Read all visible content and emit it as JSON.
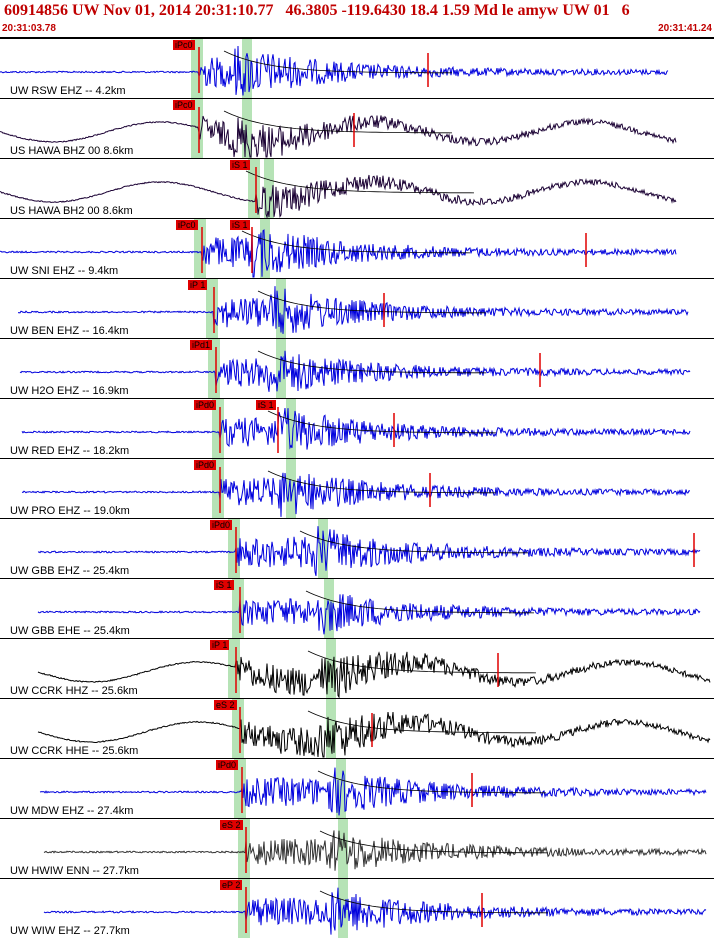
{
  "header": {
    "title": "60914856 UW Nov 01, 2014 20:31:10.77   46.3805 -119.6430 18.4 1.59 Md le amyw UW 01   6",
    "start_time": "20:31:03.78",
    "end_time": "20:31:41.24"
  },
  "colors": {
    "blue_trace": "#0000dd",
    "black_trace": "#000000",
    "pick": "#e00000",
    "band": "#b6e3b6",
    "decay": "#000000"
  },
  "panels": [
    {
      "label": "UW RSW EHZ -- 4.2km",
      "color": "#0000dd",
      "pick": "iPc0",
      "pick2": ""
    },
    {
      "label": "US HAWA BHZ 00 8.6km",
      "color": "#1a0033",
      "pick": "iPc0",
      "pick2": ""
    },
    {
      "label": "US HAWA BH2 00 8.6km",
      "color": "#1a0033",
      "pick": "iS 1",
      "pick2": ""
    },
    {
      "label": "UW SNI EHZ -- 9.4km",
      "color": "#0000dd",
      "pick": "iPc0",
      "pick2": "iS 1"
    },
    {
      "label": "UW BEN EHZ -- 16.4km",
      "color": "#0000dd",
      "pick": "iP 1",
      "pick2": ""
    },
    {
      "label": "UW H2O EHZ -- 16.9km",
      "color": "#0000dd",
      "pick": "iPd1",
      "pick2": ""
    },
    {
      "label": "UW RED EHZ -- 18.2km",
      "color": "#0000dd",
      "pick": "iPd0",
      "pick2": "iS 1"
    },
    {
      "label": "UW PRO EHZ -- 19.0km",
      "color": "#0000dd",
      "pick": "iPd0",
      "pick2": ""
    },
    {
      "label": "UW GBB EHZ -- 25.4km",
      "color": "#0000dd",
      "pick": "iPd0",
      "pick2": ""
    },
    {
      "label": "UW GBB EHE -- 25.4km",
      "color": "#0000dd",
      "pick": "iS 1",
      "pick2": ""
    },
    {
      "label": "UW CCRK HHZ -- 25.6km",
      "color": "#000000",
      "pick": "iP 1",
      "pick2": ""
    },
    {
      "label": "UW CCRK HHE -- 25.6km",
      "color": "#000000",
      "pick": "eS 2",
      "pick2": ""
    },
    {
      "label": "UW MDW EHZ -- 27.4km",
      "color": "#0000dd",
      "pick": "iPd0",
      "pick2": ""
    },
    {
      "label": "UW HWIW ENN -- 27.7km",
      "color": "#333333",
      "pick": "eS 2",
      "pick2": ""
    },
    {
      "label": "UW WIW EHZ -- 27.7km",
      "color": "#0000dd",
      "pick": "eP 2",
      "pick2": ""
    }
  ]
}
